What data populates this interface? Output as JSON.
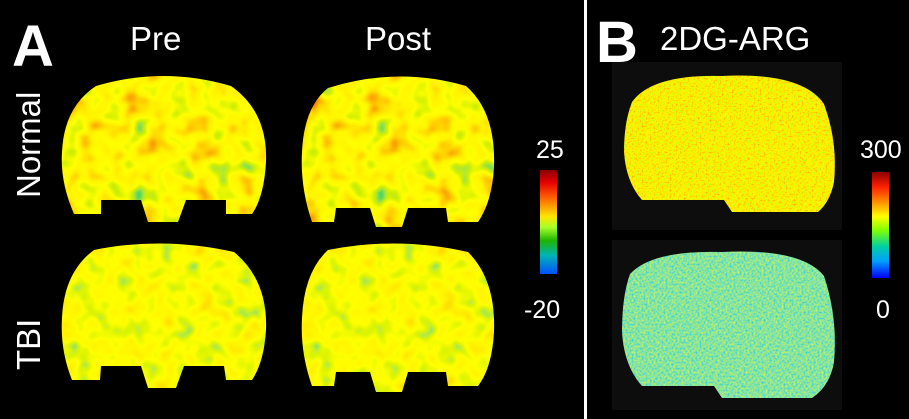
{
  "panel_a": {
    "letter": "A",
    "columns": [
      "Pre",
      "Post"
    ],
    "rows": [
      "Normal",
      "TBI"
    ],
    "scale": {
      "max": "25",
      "min": "-20"
    }
  },
  "panel_b": {
    "letter": "B",
    "title": "2DG-ARG",
    "scale": {
      "max": "300",
      "min": "0"
    }
  },
  "colors": {
    "background": "#000000",
    "text": "#ffffff",
    "hot": "#e60000",
    "warm": "#ffe600",
    "mid": "#1eb400",
    "cool": "#0050ff"
  }
}
